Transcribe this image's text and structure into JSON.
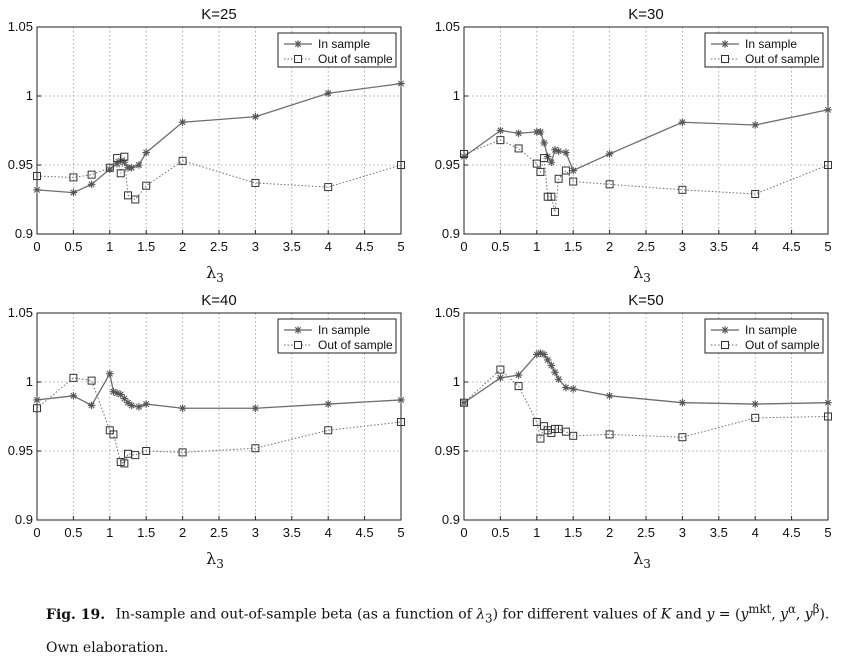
{
  "chart_data": [
    {
      "type": "line",
      "title": "K=25",
      "xlabel": "λ3",
      "xlim": [
        0,
        5
      ],
      "ylim": [
        0.9,
        1.05
      ],
      "xticks": [
        "0",
        "0.5",
        "1",
        "1.5",
        "2",
        "2.5",
        "3",
        "3.5",
        "4",
        "4.5",
        "5"
      ],
      "yticks": [
        "0.9",
        "0.95",
        "1",
        "1.05"
      ],
      "grid": true,
      "legend_position": "top-right",
      "series": [
        {
          "name": "In sample",
          "style": "solid-star",
          "x": [
            0,
            0.5,
            0.75,
            1.0,
            1.1,
            1.15,
            1.2,
            1.25,
            1.3,
            1.4,
            1.5,
            2,
            3,
            4,
            5
          ],
          "y": [
            0.932,
            0.93,
            0.936,
            0.947,
            0.951,
            0.953,
            0.952,
            0.948,
            0.948,
            0.95,
            0.959,
            0.981,
            0.985,
            1.002,
            1.009
          ]
        },
        {
          "name": "Out of sample",
          "style": "dotted-square",
          "x": [
            0,
            0.5,
            0.75,
            1.0,
            1.1,
            1.15,
            1.2,
            1.25,
            1.35,
            1.5,
            2,
            3,
            4,
            5
          ],
          "y": [
            0.942,
            0.941,
            0.943,
            0.948,
            0.955,
            0.944,
            0.956,
            0.928,
            0.925,
            0.935,
            0.953,
            0.937,
            0.934,
            0.95
          ]
        }
      ]
    },
    {
      "type": "line",
      "title": "K=30",
      "xlabel": "λ3",
      "xlim": [
        0,
        5
      ],
      "ylim": [
        0.9,
        1.05
      ],
      "xticks": [
        "0",
        "0.5",
        "1",
        "1.5",
        "2",
        "2.5",
        "3",
        "3.5",
        "4",
        "4.5",
        "5"
      ],
      "yticks": [
        "0.9",
        "0.95",
        "1",
        "1.05"
      ],
      "grid": true,
      "legend_position": "top-right",
      "series": [
        {
          "name": "In sample",
          "style": "solid-star",
          "x": [
            0,
            0.5,
            0.75,
            1.0,
            1.05,
            1.1,
            1.15,
            1.2,
            1.25,
            1.3,
            1.4,
            1.5,
            2,
            3,
            4,
            5
          ],
          "y": [
            0.956,
            0.975,
            0.973,
            0.974,
            0.974,
            0.966,
            0.956,
            0.952,
            0.961,
            0.96,
            0.959,
            0.946,
            0.958,
            0.981,
            0.979,
            0.99
          ]
        },
        {
          "name": "Out of sample",
          "style": "dotted-square",
          "x": [
            0,
            0.5,
            0.75,
            1.0,
            1.05,
            1.1,
            1.15,
            1.2,
            1.25,
            1.3,
            1.4,
            1.5,
            2,
            3,
            4,
            5
          ],
          "y": [
            0.958,
            0.968,
            0.962,
            0.951,
            0.945,
            0.955,
            0.927,
            0.927,
            0.916,
            0.94,
            0.946,
            0.938,
            0.936,
            0.932,
            0.929,
            0.95
          ]
        }
      ]
    },
    {
      "type": "line",
      "title": "K=40",
      "xlabel": "λ3",
      "xlim": [
        0,
        5
      ],
      "ylim": [
        0.9,
        1.05
      ],
      "xticks": [
        "0",
        "0.5",
        "1",
        "1.5",
        "2",
        "2.5",
        "3",
        "3.5",
        "4",
        "4.5",
        "5"
      ],
      "yticks": [
        "0.9",
        "0.95",
        "1",
        "1.05"
      ],
      "grid": true,
      "legend_position": "top-right",
      "series": [
        {
          "name": "In sample",
          "style": "solid-star",
          "x": [
            0,
            0.5,
            0.75,
            1.0,
            1.05,
            1.1,
            1.15,
            1.2,
            1.25,
            1.3,
            1.4,
            1.5,
            2,
            3,
            4,
            5
          ],
          "y": [
            0.987,
            0.99,
            0.983,
            1.006,
            0.993,
            0.992,
            0.991,
            0.988,
            0.985,
            0.983,
            0.982,
            0.984,
            0.981,
            0.981,
            0.984,
            0.987
          ]
        },
        {
          "name": "Out of sample",
          "style": "dotted-square",
          "x": [
            0,
            0.5,
            0.75,
            1.0,
            1.05,
            1.15,
            1.2,
            1.25,
            1.35,
            1.5,
            2,
            3,
            4,
            5
          ],
          "y": [
            0.981,
            1.003,
            1.001,
            0.965,
            0.962,
            0.942,
            0.941,
            0.948,
            0.947,
            0.95,
            0.949,
            0.952,
            0.965,
            0.971
          ]
        }
      ]
    },
    {
      "type": "line",
      "title": "K=50",
      "xlabel": "λ3",
      "xlim": [
        0,
        5
      ],
      "ylim": [
        0.9,
        1.05
      ],
      "xticks": [
        "0",
        "0.5",
        "1",
        "1.5",
        "2",
        "2.5",
        "3",
        "3.5",
        "4",
        "4.5",
        "5"
      ],
      "yticks": [
        "0.9",
        "0.95",
        "1",
        "1.05"
      ],
      "grid": true,
      "legend_position": "top-right",
      "series": [
        {
          "name": "In sample",
          "style": "solid-star",
          "x": [
            0,
            0.5,
            0.75,
            1.0,
            1.05,
            1.1,
            1.15,
            1.2,
            1.25,
            1.3,
            1.4,
            1.5,
            2,
            3,
            4,
            5
          ],
          "y": [
            0.985,
            1.003,
            1.005,
            1.02,
            1.021,
            1.02,
            1.016,
            1.012,
            1.007,
            1.002,
            0.996,
            0.995,
            0.99,
            0.985,
            0.984,
            0.985
          ]
        },
        {
          "name": "Out of sample",
          "style": "dotted-square",
          "x": [
            0,
            0.5,
            0.75,
            1.0,
            1.05,
            1.1,
            1.15,
            1.2,
            1.25,
            1.3,
            1.4,
            1.5,
            2,
            3,
            4,
            5
          ],
          "y": [
            0.985,
            1.009,
            0.997,
            0.971,
            0.959,
            0.968,
            0.965,
            0.963,
            0.966,
            0.966,
            0.964,
            0.961,
            0.962,
            0.96,
            0.974,
            0.975
          ]
        }
      ]
    }
  ],
  "caption": {
    "label": "Fig. 19.",
    "text_part1": "In-sample and out-of-sample beta (as a function of ",
    "lambda_symbol": "λ",
    "lambda_sub": "3",
    "text_part2": ") for different values of ",
    "k_symbol": "K",
    "text_part3": " and ",
    "y_symbol": "y",
    "text_part4": " = (",
    "y_mkt": "y",
    "mkt_sup": "mkt",
    "sep1": ", ",
    "y_alpha": "y",
    "alpha_sup": "α",
    "sep2": ", ",
    "y_beta": "y",
    "beta_sup": "β",
    "text_part5": ").",
    "line2": "Own elaboration."
  }
}
